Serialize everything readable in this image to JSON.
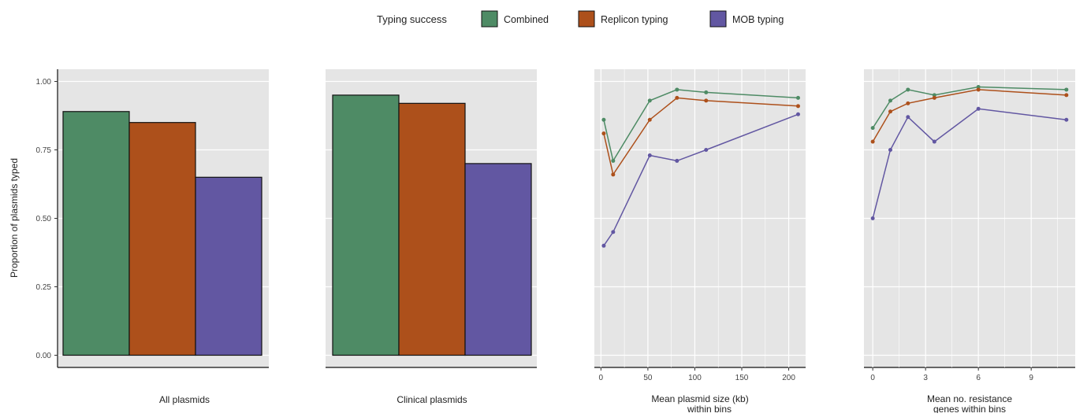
{
  "legend": {
    "title": "Typing success",
    "items": [
      {
        "label": "Combined",
        "color": "#4e8b65"
      },
      {
        "label": "Replicon typing",
        "color": "#ad501b"
      },
      {
        "label": "MOB typing",
        "color": "#6257a2"
      }
    ]
  },
  "chart_data": [
    {
      "type": "bar",
      "title": "",
      "xlabel": "All plasmids",
      "ylabel": "Proportion of plasmids typed",
      "ylim": [
        0,
        1
      ],
      "yticks": [
        "0.00",
        "0.25",
        "0.50",
        "0.75",
        "1.00"
      ],
      "grid": true,
      "legend": "top",
      "series": [
        {
          "name": "Combined",
          "values": [
            0.89
          ]
        },
        {
          "name": "Replicon typing",
          "values": [
            0.85
          ]
        },
        {
          "name": "MOB typing",
          "values": [
            0.65
          ]
        }
      ]
    },
    {
      "type": "bar",
      "title": "",
      "xlabel": "Clinical plasmids",
      "ylabel": "",
      "ylim": [
        0,
        1
      ],
      "grid": true,
      "series": [
        {
          "name": "Combined",
          "values": [
            0.95
          ]
        },
        {
          "name": "Replicon typing",
          "values": [
            0.92
          ]
        },
        {
          "name": "MOB typing",
          "values": [
            0.7
          ]
        }
      ]
    },
    {
      "type": "line",
      "title": "",
      "xlabel": "Mean plasmid size (kb) within bins",
      "ylabel": "",
      "xlim": [
        -7,
        218
      ],
      "ylim": [
        0,
        1
      ],
      "xticks": [
        "0",
        "50",
        "100",
        "150",
        "200"
      ],
      "grid": true,
      "series": [
        {
          "name": "Combined",
          "x": [
            3,
            13,
            52,
            81,
            112,
            210
          ],
          "y": [
            0.86,
            0.71,
            0.93,
            0.97,
            0.96,
            0.94
          ]
        },
        {
          "name": "Replicon typing",
          "x": [
            3,
            13,
            52,
            81,
            112,
            210
          ],
          "y": [
            0.81,
            0.66,
            0.86,
            0.94,
            0.93,
            0.91
          ]
        },
        {
          "name": "MOB typing",
          "x": [
            3,
            13,
            52,
            81,
            112,
            210
          ],
          "y": [
            0.4,
            0.45,
            0.73,
            0.71,
            0.75,
            0.88
          ]
        }
      ]
    },
    {
      "type": "line",
      "title": "",
      "xlabel": "Mean no. resistance genes within bins",
      "ylabel": "",
      "xlim": [
        -0.5,
        11.5
      ],
      "ylim": [
        0,
        1
      ],
      "xticks": [
        "0",
        "3",
        "6",
        "9"
      ],
      "grid": true,
      "series": [
        {
          "name": "Combined",
          "x": [
            0,
            1,
            2,
            3.5,
            6,
            11
          ],
          "y": [
            0.83,
            0.93,
            0.97,
            0.95,
            0.98,
            0.97
          ]
        },
        {
          "name": "Replicon typing",
          "x": [
            0,
            1,
            2,
            3.5,
            6,
            11
          ],
          "y": [
            0.78,
            0.89,
            0.92,
            0.94,
            0.97,
            0.95
          ]
        },
        {
          "name": "MOB typing",
          "x": [
            0,
            1,
            2,
            3.5,
            6,
            11
          ],
          "y": [
            0.5,
            0.75,
            0.87,
            0.78,
            0.9,
            0.86
          ]
        }
      ]
    }
  ]
}
